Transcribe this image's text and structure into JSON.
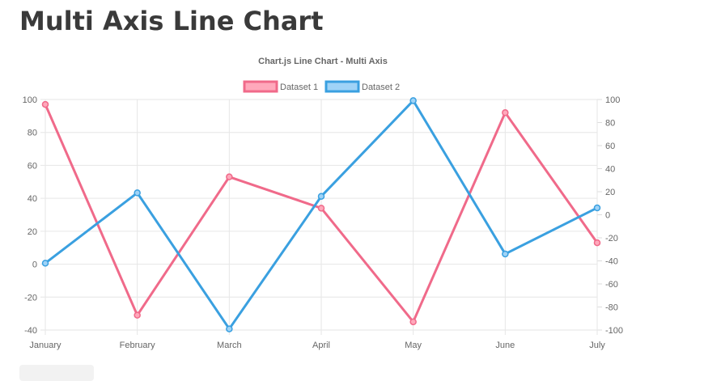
{
  "page": {
    "title": "Multi Axis Line Chart"
  },
  "chart_data": {
    "type": "line",
    "title": "Chart.js Line Chart - Multi Axis",
    "legend": "top",
    "grid": true,
    "categories": [
      "January",
      "February",
      "March",
      "April",
      "May",
      "June",
      "July"
    ],
    "y_left": {
      "ylim": [
        -40,
        100
      ],
      "ticks": [
        "100",
        "80",
        "60",
        "40",
        "20",
        "0",
        "-20",
        "-40"
      ]
    },
    "y_right": {
      "ylim": [
        -100,
        100
      ],
      "ticks": [
        "100",
        "80",
        "60",
        "40",
        "20",
        "0",
        "-20",
        "-40",
        "-60",
        "-80",
        "-100"
      ]
    },
    "series": [
      {
        "name": "Dataset 1",
        "axis": "left",
        "color": "#f06a8a",
        "fill": "#ffa8bb",
        "values": [
          97,
          -31,
          53,
          34,
          -35,
          92,
          13
        ]
      },
      {
        "name": "Dataset 2",
        "axis": "right",
        "color": "#3aa0e0",
        "fill": "#9fd3f7",
        "values": [
          -42,
          19,
          -99,
          16,
          99,
          -34,
          6
        ]
      }
    ]
  }
}
